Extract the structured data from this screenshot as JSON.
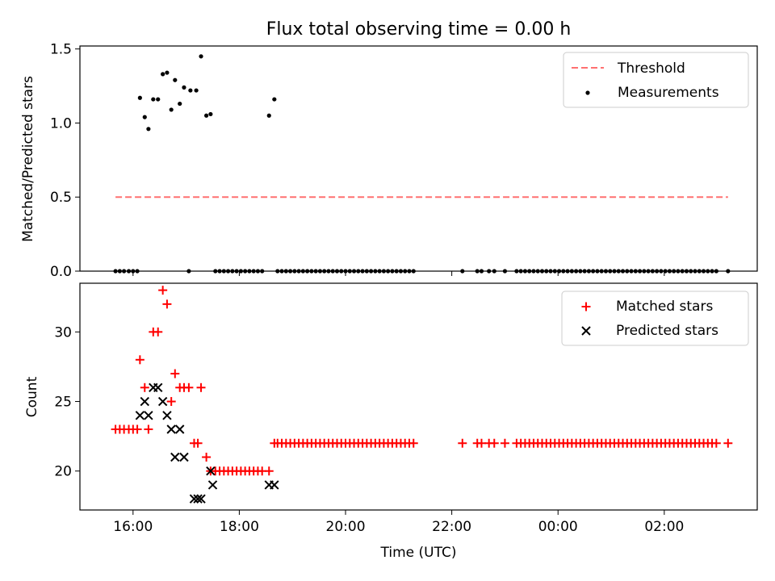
{
  "title": "Flux total observing time = 0.00 h",
  "colors": {
    "threshold": "#ff7070",
    "measurements": "#000000",
    "matched": "#ff0000",
    "predicted": "#000000"
  },
  "chart_data": [
    {
      "type": "scatter",
      "panel": "top",
      "xlabel": "",
      "ylabel": "Matched/Predicted stars",
      "xlim": [
        15.0,
        27.75
      ],
      "ylim": [
        0,
        1.52
      ],
      "yticks": [
        0.0,
        0.5,
        1.0,
        1.5
      ],
      "ytick_labels": [
        "0.0",
        "0.5",
        "1.0",
        "1.5"
      ],
      "legend_position": "top-right",
      "threshold": {
        "name": "Threshold",
        "value": 0.5,
        "x_range": [
          15.67,
          27.2
        ]
      },
      "measurements": {
        "name": "Measurements",
        "points": [
          [
            16.13,
            1.17
          ],
          [
            16.22,
            1.04
          ],
          [
            16.29,
            0.96
          ],
          [
            16.38,
            1.16
          ],
          [
            16.47,
            1.16
          ],
          [
            16.56,
            1.33
          ],
          [
            16.64,
            1.34
          ],
          [
            16.72,
            1.09
          ],
          [
            16.79,
            1.29
          ],
          [
            16.88,
            1.13
          ],
          [
            16.96,
            1.24
          ],
          [
            17.08,
            1.22
          ],
          [
            17.19,
            1.22
          ],
          [
            17.28,
            1.45
          ],
          [
            17.38,
            1.05
          ],
          [
            17.46,
            1.06
          ],
          [
            18.56,
            1.05
          ],
          [
            18.66,
            1.16
          ],
          [
            15.67,
            0
          ],
          [
            15.75,
            0
          ],
          [
            15.83,
            0
          ],
          [
            15.92,
            0
          ],
          [
            16.0,
            0
          ],
          [
            16.08,
            0
          ],
          [
            17.05,
            0
          ],
          [
            17.55,
            0
          ],
          [
            17.63,
            0
          ],
          [
            17.71,
            0
          ],
          [
            17.79,
            0
          ],
          [
            17.87,
            0
          ],
          [
            17.95,
            0
          ],
          [
            18.03,
            0
          ],
          [
            18.11,
            0
          ],
          [
            18.19,
            0
          ],
          [
            18.27,
            0
          ],
          [
            18.35,
            0
          ],
          [
            18.43,
            0
          ],
          [
            18.72,
            0
          ],
          [
            18.8,
            0
          ],
          [
            18.88,
            0
          ],
          [
            18.96,
            0
          ],
          [
            19.04,
            0
          ],
          [
            19.12,
            0
          ],
          [
            19.2,
            0
          ],
          [
            19.28,
            0
          ],
          [
            19.36,
            0
          ],
          [
            19.44,
            0
          ],
          [
            19.52,
            0
          ],
          [
            19.6,
            0
          ],
          [
            19.68,
            0
          ],
          [
            19.76,
            0
          ],
          [
            19.84,
            0
          ],
          [
            19.92,
            0
          ],
          [
            20.0,
            0
          ],
          [
            20.08,
            0
          ],
          [
            20.16,
            0
          ],
          [
            20.24,
            0
          ],
          [
            20.32,
            0
          ],
          [
            20.4,
            0
          ],
          [
            20.48,
            0
          ],
          [
            20.56,
            0
          ],
          [
            20.64,
            0
          ],
          [
            20.72,
            0
          ],
          [
            20.8,
            0
          ],
          [
            20.88,
            0
          ],
          [
            20.96,
            0
          ],
          [
            21.04,
            0
          ],
          [
            21.12,
            0
          ],
          [
            21.2,
            0
          ],
          [
            21.28,
            0
          ],
          [
            22.2,
            0
          ],
          [
            22.48,
            0
          ],
          [
            22.56,
            0
          ],
          [
            22.7,
            0
          ],
          [
            22.8,
            0
          ],
          [
            23.0,
            0
          ],
          [
            23.22,
            0
          ],
          [
            23.3,
            0
          ],
          [
            23.38,
            0
          ],
          [
            23.46,
            0
          ],
          [
            23.54,
            0
          ],
          [
            23.62,
            0
          ],
          [
            23.7,
            0
          ],
          [
            23.78,
            0
          ],
          [
            23.86,
            0
          ],
          [
            23.94,
            0
          ],
          [
            24.02,
            0
          ],
          [
            24.1,
            0
          ],
          [
            24.18,
            0
          ],
          [
            24.26,
            0
          ],
          [
            24.34,
            0
          ],
          [
            24.42,
            0
          ],
          [
            24.5,
            0
          ],
          [
            24.58,
            0
          ],
          [
            24.66,
            0
          ],
          [
            24.74,
            0
          ],
          [
            24.82,
            0
          ],
          [
            24.9,
            0
          ],
          [
            24.98,
            0
          ],
          [
            25.06,
            0
          ],
          [
            25.14,
            0
          ],
          [
            25.22,
            0
          ],
          [
            25.3,
            0
          ],
          [
            25.38,
            0
          ],
          [
            25.46,
            0
          ],
          [
            25.54,
            0
          ],
          [
            25.62,
            0
          ],
          [
            25.7,
            0
          ],
          [
            25.78,
            0
          ],
          [
            25.86,
            0
          ],
          [
            25.94,
            0
          ],
          [
            26.02,
            0
          ],
          [
            26.1,
            0
          ],
          [
            26.18,
            0
          ],
          [
            26.26,
            0
          ],
          [
            26.34,
            0
          ],
          [
            26.42,
            0
          ],
          [
            26.5,
            0
          ],
          [
            26.58,
            0
          ],
          [
            26.66,
            0
          ],
          [
            26.74,
            0
          ],
          [
            26.82,
            0
          ],
          [
            26.9,
            0
          ],
          [
            26.98,
            0
          ],
          [
            27.2,
            0
          ]
        ]
      }
    },
    {
      "type": "scatter",
      "panel": "bottom",
      "xlabel": "Time (UTC)",
      "ylabel": "Count",
      "xlim": [
        15.0,
        27.75
      ],
      "ylim": [
        17.2,
        33.5
      ],
      "xticks": [
        16,
        18,
        20,
        22,
        24,
        26
      ],
      "xtick_labels": [
        "16:00",
        "18:00",
        "20:00",
        "22:00",
        "00:00",
        "02:00"
      ],
      "yticks": [
        20,
        25,
        30
      ],
      "ytick_labels": [
        "20",
        "25",
        "30"
      ],
      "legend_position": "top-right",
      "series": [
        {
          "name": "Matched stars",
          "marker": "plus",
          "points": [
            [
              15.67,
              23
            ],
            [
              15.75,
              23
            ],
            [
              15.83,
              23
            ],
            [
              15.92,
              23
            ],
            [
              16.0,
              23
            ],
            [
              16.08,
              23
            ],
            [
              16.13,
              28
            ],
            [
              16.22,
              26
            ],
            [
              16.29,
              23
            ],
            [
              16.38,
              30
            ],
            [
              16.47,
              30
            ],
            [
              16.56,
              33
            ],
            [
              16.64,
              32
            ],
            [
              16.72,
              25
            ],
            [
              16.79,
              27
            ],
            [
              16.88,
              26
            ],
            [
              16.96,
              26
            ],
            [
              17.05,
              26
            ],
            [
              17.15,
              22
            ],
            [
              17.22,
              22
            ],
            [
              17.28,
              26
            ],
            [
              17.38,
              21
            ],
            [
              17.46,
              20
            ],
            [
              17.55,
              20
            ],
            [
              17.63,
              20
            ],
            [
              17.71,
              20
            ],
            [
              17.79,
              20
            ],
            [
              17.87,
              20
            ],
            [
              17.95,
              20
            ],
            [
              18.03,
              20
            ],
            [
              18.11,
              20
            ],
            [
              18.19,
              20
            ],
            [
              18.27,
              20
            ],
            [
              18.35,
              20
            ],
            [
              18.43,
              20
            ],
            [
              18.56,
              20
            ],
            [
              18.66,
              22
            ],
            [
              18.72,
              22
            ],
            [
              18.8,
              22
            ],
            [
              18.88,
              22
            ],
            [
              18.96,
              22
            ],
            [
              19.04,
              22
            ],
            [
              19.12,
              22
            ],
            [
              19.2,
              22
            ],
            [
              19.28,
              22
            ],
            [
              19.36,
              22
            ],
            [
              19.44,
              22
            ],
            [
              19.52,
              22
            ],
            [
              19.6,
              22
            ],
            [
              19.68,
              22
            ],
            [
              19.76,
              22
            ],
            [
              19.84,
              22
            ],
            [
              19.92,
              22
            ],
            [
              20.0,
              22
            ],
            [
              20.08,
              22
            ],
            [
              20.16,
              22
            ],
            [
              20.24,
              22
            ],
            [
              20.32,
              22
            ],
            [
              20.4,
              22
            ],
            [
              20.48,
              22
            ],
            [
              20.56,
              22
            ],
            [
              20.64,
              22
            ],
            [
              20.72,
              22
            ],
            [
              20.8,
              22
            ],
            [
              20.88,
              22
            ],
            [
              20.96,
              22
            ],
            [
              21.04,
              22
            ],
            [
              21.12,
              22
            ],
            [
              21.2,
              22
            ],
            [
              21.28,
              22
            ],
            [
              22.2,
              22
            ],
            [
              22.48,
              22
            ],
            [
              22.56,
              22
            ],
            [
              22.7,
              22
            ],
            [
              22.8,
              22
            ],
            [
              23.0,
              22
            ],
            [
              23.22,
              22
            ],
            [
              23.3,
              22
            ],
            [
              23.38,
              22
            ],
            [
              23.46,
              22
            ],
            [
              23.54,
              22
            ],
            [
              23.62,
              22
            ],
            [
              23.7,
              22
            ],
            [
              23.78,
              22
            ],
            [
              23.86,
              22
            ],
            [
              23.94,
              22
            ],
            [
              24.02,
              22
            ],
            [
              24.1,
              22
            ],
            [
              24.18,
              22
            ],
            [
              24.26,
              22
            ],
            [
              24.34,
              22
            ],
            [
              24.42,
              22
            ],
            [
              24.5,
              22
            ],
            [
              24.58,
              22
            ],
            [
              24.66,
              22
            ],
            [
              24.74,
              22
            ],
            [
              24.82,
              22
            ],
            [
              24.9,
              22
            ],
            [
              24.98,
              22
            ],
            [
              25.06,
              22
            ],
            [
              25.14,
              22
            ],
            [
              25.22,
              22
            ],
            [
              25.3,
              22
            ],
            [
              25.38,
              22
            ],
            [
              25.46,
              22
            ],
            [
              25.54,
              22
            ],
            [
              25.62,
              22
            ],
            [
              25.7,
              22
            ],
            [
              25.78,
              22
            ],
            [
              25.86,
              22
            ],
            [
              25.94,
              22
            ],
            [
              26.02,
              22
            ],
            [
              26.1,
              22
            ],
            [
              26.18,
              22
            ],
            [
              26.26,
              22
            ],
            [
              26.34,
              22
            ],
            [
              26.42,
              22
            ],
            [
              26.5,
              22
            ],
            [
              26.58,
              22
            ],
            [
              26.66,
              22
            ],
            [
              26.74,
              22
            ],
            [
              26.82,
              22
            ],
            [
              26.9,
              22
            ],
            [
              26.98,
              22
            ],
            [
              27.2,
              22
            ]
          ]
        },
        {
          "name": "Predicted stars",
          "marker": "x",
          "points": [
            [
              16.13,
              24
            ],
            [
              16.22,
              25
            ],
            [
              16.29,
              24
            ],
            [
              16.38,
              26
            ],
            [
              16.47,
              26
            ],
            [
              16.56,
              25
            ],
            [
              16.64,
              24
            ],
            [
              16.72,
              23
            ],
            [
              16.79,
              21
            ],
            [
              16.88,
              23
            ],
            [
              16.96,
              21
            ],
            [
              17.15,
              18
            ],
            [
              17.22,
              18
            ],
            [
              17.28,
              18
            ],
            [
              17.46,
              20
            ],
            [
              17.5,
              19
            ],
            [
              18.56,
              19
            ],
            [
              18.66,
              19
            ]
          ]
        }
      ]
    }
  ]
}
